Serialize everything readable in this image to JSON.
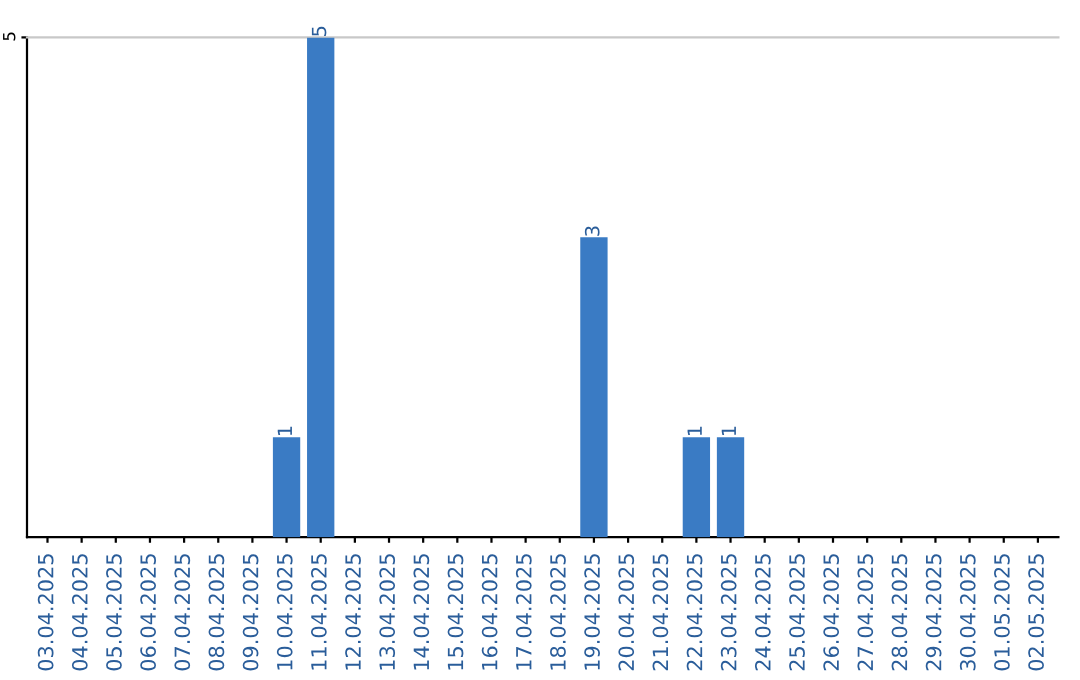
{
  "chart_data": {
    "type": "bar",
    "categories": [
      "03.04.2025",
      "04.04.2025",
      "05.04.2025",
      "06.04.2025",
      "07.04.2025",
      "08.04.2025",
      "09.04.2025",
      "10.04.2025",
      "11.04.2025",
      "12.04.2025",
      "13.04.2025",
      "14.04.2025",
      "15.04.2025",
      "16.04.2025",
      "17.04.2025",
      "18.04.2025",
      "19.04.2025",
      "20.04.2025",
      "21.04.2025",
      "22.04.2025",
      "23.04.2025",
      "24.04.2025",
      "25.04.2025",
      "26.04.2025",
      "27.04.2025",
      "28.04.2025",
      "29.04.2025",
      "30.04.2025",
      "01.05.2025",
      "02.05.2025"
    ],
    "values": [
      0,
      0,
      0,
      0,
      0,
      0,
      0,
      1,
      5,
      0,
      0,
      0,
      0,
      0,
      0,
      0,
      3,
      0,
      0,
      1,
      1,
      0,
      0,
      0,
      0,
      0,
      0,
      0,
      0,
      0
    ],
    "value_labels": [
      null,
      null,
      null,
      null,
      null,
      null,
      null,
      "1",
      "5",
      null,
      null,
      null,
      null,
      null,
      null,
      null,
      "3",
      null,
      null,
      "1",
      "1",
      null,
      null,
      null,
      null,
      null,
      null,
      null,
      null,
      null
    ],
    "color": "#3a7bc4",
    "ylim": [
      0,
      5
    ],
    "yticks": [
      5
    ]
  }
}
